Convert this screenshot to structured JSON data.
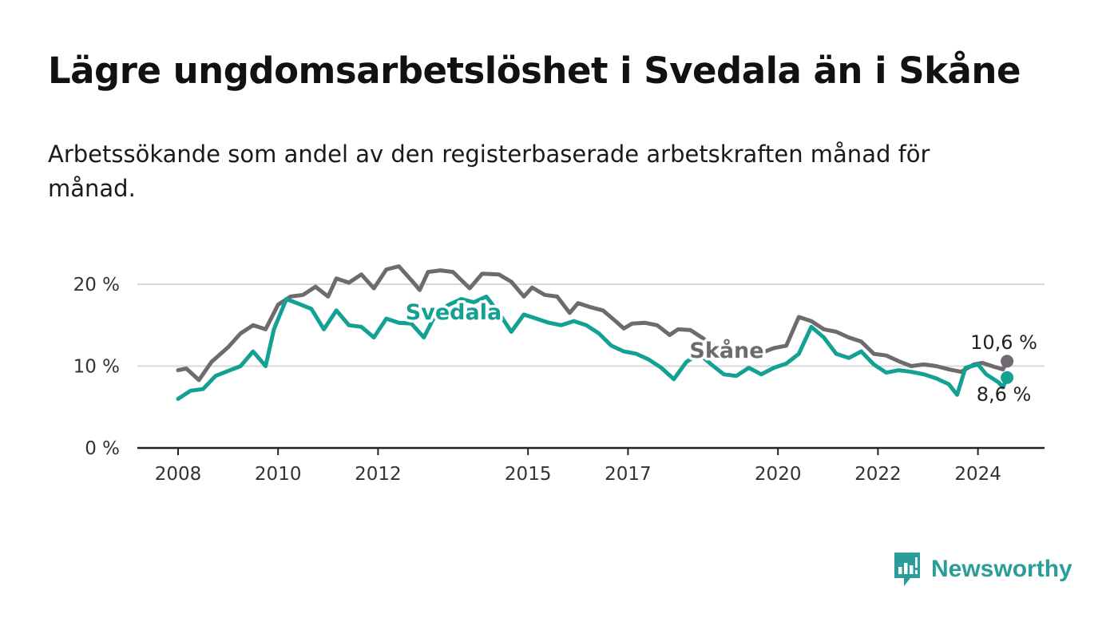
{
  "title": "Lägre ungdomsarbetslöshet i Svedala än i Skåne",
  "subtitle": "Arbetssökande som andel av den registerbaserade arbetskraften månad för månad.",
  "brand": {
    "name": "Newsworthy",
    "icon": "newsworthy-logo-icon",
    "color": "#2a9d9a"
  },
  "chart_data": {
    "type": "line",
    "title": "Lägre ungdomsarbetslöshet i Svedala än i Skåne",
    "subtitle": "Arbetssökande som andel av den registerbaserade arbetskraften månad för månad.",
    "xlabel": "",
    "ylabel": "",
    "x_ticks": [
      "2008",
      "2010",
      "2012",
      "2015",
      "2017",
      "2020",
      "2022",
      "2024"
    ],
    "y_ticks": [
      "0 %",
      "10 %",
      "20 %"
    ],
    "ylim": [
      0,
      22
    ],
    "grid": "horizontal",
    "series": [
      {
        "name": "Skåne",
        "color": "#6e6a70",
        "end_label": "10,6 %",
        "points": [
          [
            "2008-01",
            9.5
          ],
          [
            "2008-03",
            9.7
          ],
          [
            "2008-06",
            8.3
          ],
          [
            "2008-09",
            10.5
          ],
          [
            "2009-01",
            12.3
          ],
          [
            "2009-04",
            14.0
          ],
          [
            "2009-07",
            15.0
          ],
          [
            "2009-10",
            14.5
          ],
          [
            "2010-01",
            17.5
          ],
          [
            "2010-04",
            18.5
          ],
          [
            "2010-07",
            18.7
          ],
          [
            "2010-10",
            19.7
          ],
          [
            "2011-01",
            18.5
          ],
          [
            "2011-03",
            20.7
          ],
          [
            "2011-06",
            20.2
          ],
          [
            "2011-09",
            21.2
          ],
          [
            "2011-12",
            19.5
          ],
          [
            "2012-03",
            21.8
          ],
          [
            "2012-06",
            22.2
          ],
          [
            "2012-09",
            20.5
          ],
          [
            "2012-11",
            19.3
          ],
          [
            "2013-01",
            21.5
          ],
          [
            "2013-04",
            21.7
          ],
          [
            "2013-07",
            21.5
          ],
          [
            "2013-11",
            19.5
          ],
          [
            "2014-02",
            21.3
          ],
          [
            "2014-06",
            21.2
          ],
          [
            "2014-09",
            20.3
          ],
          [
            "2014-12",
            18.5
          ],
          [
            "2015-02",
            19.6
          ],
          [
            "2015-05",
            18.7
          ],
          [
            "2015-08",
            18.5
          ],
          [
            "2015-11",
            16.5
          ],
          [
            "2016-01",
            17.7
          ],
          [
            "2016-04",
            17.2
          ],
          [
            "2016-07",
            16.8
          ],
          [
            "2016-10",
            15.5
          ],
          [
            "2016-12",
            14.6
          ],
          [
            "2017-02",
            15.2
          ],
          [
            "2017-05",
            15.3
          ],
          [
            "2017-08",
            15.0
          ],
          [
            "2017-11",
            13.8
          ],
          [
            "2018-01",
            14.5
          ],
          [
            "2018-04",
            14.4
          ],
          [
            "2018-07",
            13.4
          ],
          [
            "2018-10",
            12.0
          ],
          [
            "2019-01",
            11.8
          ],
          [
            "2019-05",
            11.5
          ],
          [
            "2019-09",
            11.6
          ],
          [
            "2019-12",
            12.2
          ],
          [
            "2020-03",
            12.5
          ],
          [
            "2020-06",
            16.0
          ],
          [
            "2020-09",
            15.5
          ],
          [
            "2020-12",
            14.5
          ],
          [
            "2021-03",
            14.2
          ],
          [
            "2021-06",
            13.5
          ],
          [
            "2021-09",
            13.0
          ],
          [
            "2021-12",
            11.5
          ],
          [
            "2022-03",
            11.3
          ],
          [
            "2022-06",
            10.6
          ],
          [
            "2022-09",
            10.0
          ],
          [
            "2022-12",
            10.2
          ],
          [
            "2023-03",
            10.0
          ],
          [
            "2023-06",
            9.6
          ],
          [
            "2023-09",
            9.3
          ],
          [
            "2023-12",
            10.2
          ],
          [
            "2024-02",
            10.4
          ],
          [
            "2024-05",
            9.9
          ],
          [
            "2024-07",
            9.6
          ],
          [
            "2024-08",
            10.6
          ]
        ]
      },
      {
        "name": "Svedala",
        "color": "#12a193",
        "end_label": "8,6 %",
        "points": [
          [
            "2008-01",
            6.0
          ],
          [
            "2008-04",
            7.0
          ],
          [
            "2008-07",
            7.2
          ],
          [
            "2008-10",
            8.8
          ],
          [
            "2009-01",
            9.4
          ],
          [
            "2009-04",
            10.0
          ],
          [
            "2009-07",
            11.8
          ],
          [
            "2009-10",
            10.0
          ],
          [
            "2009-12",
            14.5
          ],
          [
            "2010-03",
            18.2
          ],
          [
            "2010-06",
            17.6
          ],
          [
            "2010-09",
            17.0
          ],
          [
            "2010-12",
            14.5
          ],
          [
            "2011-03",
            16.8
          ],
          [
            "2011-06",
            15.0
          ],
          [
            "2011-09",
            14.8
          ],
          [
            "2011-12",
            13.5
          ],
          [
            "2012-03",
            15.8
          ],
          [
            "2012-06",
            15.3
          ],
          [
            "2012-09",
            15.2
          ],
          [
            "2012-12",
            13.5
          ],
          [
            "2013-03",
            16.5
          ],
          [
            "2013-06",
            17.5
          ],
          [
            "2013-09",
            18.2
          ],
          [
            "2013-12",
            17.8
          ],
          [
            "2014-03",
            18.5
          ],
          [
            "2014-06",
            16.5
          ],
          [
            "2014-09",
            14.2
          ],
          [
            "2014-12",
            16.3
          ],
          [
            "2015-03",
            15.8
          ],
          [
            "2015-06",
            15.3
          ],
          [
            "2015-09",
            15.0
          ],
          [
            "2015-12",
            15.5
          ],
          [
            "2016-03",
            15.0
          ],
          [
            "2016-06",
            14.0
          ],
          [
            "2016-09",
            12.5
          ],
          [
            "2016-12",
            11.8
          ],
          [
            "2017-03",
            11.5
          ],
          [
            "2017-06",
            10.8
          ],
          [
            "2017-09",
            9.8
          ],
          [
            "2017-12",
            8.4
          ],
          [
            "2018-03",
            10.5
          ],
          [
            "2018-06",
            11.5
          ],
          [
            "2018-09",
            10.2
          ],
          [
            "2018-12",
            9.0
          ],
          [
            "2019-03",
            8.8
          ],
          [
            "2019-06",
            9.8
          ],
          [
            "2019-09",
            9.0
          ],
          [
            "2019-12",
            9.8
          ],
          [
            "2020-03",
            10.3
          ],
          [
            "2020-06",
            11.5
          ],
          [
            "2020-09",
            14.8
          ],
          [
            "2020-12",
            13.5
          ],
          [
            "2021-03",
            11.5
          ],
          [
            "2021-06",
            11.0
          ],
          [
            "2021-09",
            11.8
          ],
          [
            "2021-12",
            10.2
          ],
          [
            "2022-03",
            9.2
          ],
          [
            "2022-06",
            9.5
          ],
          [
            "2022-09",
            9.3
          ],
          [
            "2022-12",
            9.0
          ],
          [
            "2023-03",
            8.5
          ],
          [
            "2023-06",
            7.8
          ],
          [
            "2023-08",
            6.5
          ],
          [
            "2023-10",
            9.8
          ],
          [
            "2024-01",
            10.2
          ],
          [
            "2024-03",
            9.0
          ],
          [
            "2024-06",
            8.0
          ],
          [
            "2024-07",
            7.4
          ],
          [
            "2024-08",
            8.6
          ]
        ]
      }
    ]
  }
}
